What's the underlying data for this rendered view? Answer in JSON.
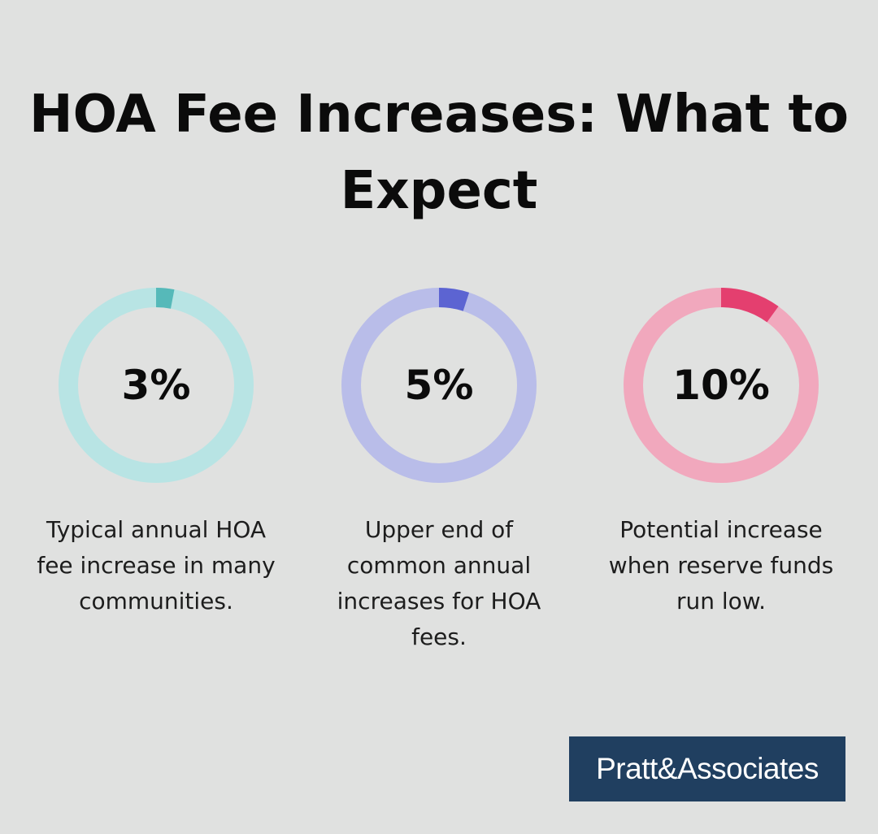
{
  "title": "HOA Fee Increases: What to Expect",
  "chart_data": {
    "type": "pie",
    "items": [
      {
        "value": 3,
        "label": "3%",
        "description": "Typical annual HOA fee increase in many communities.",
        "track_color": "#b8e4e4",
        "fill_color": "#56b9b9"
      },
      {
        "value": 5,
        "label": "5%",
        "description": "Upper end of common annual increases for HOA fees.",
        "track_color": "#b9bde9",
        "fill_color": "#5c64d2"
      },
      {
        "value": 10,
        "label": "10%",
        "description": "Potential increase when reserve funds run low.",
        "track_color": "#f1a8bd",
        "fill_color": "#e43f6f"
      }
    ]
  },
  "logo": {
    "text": "Pratt&Associates",
    "bg_color": "#203f60"
  }
}
